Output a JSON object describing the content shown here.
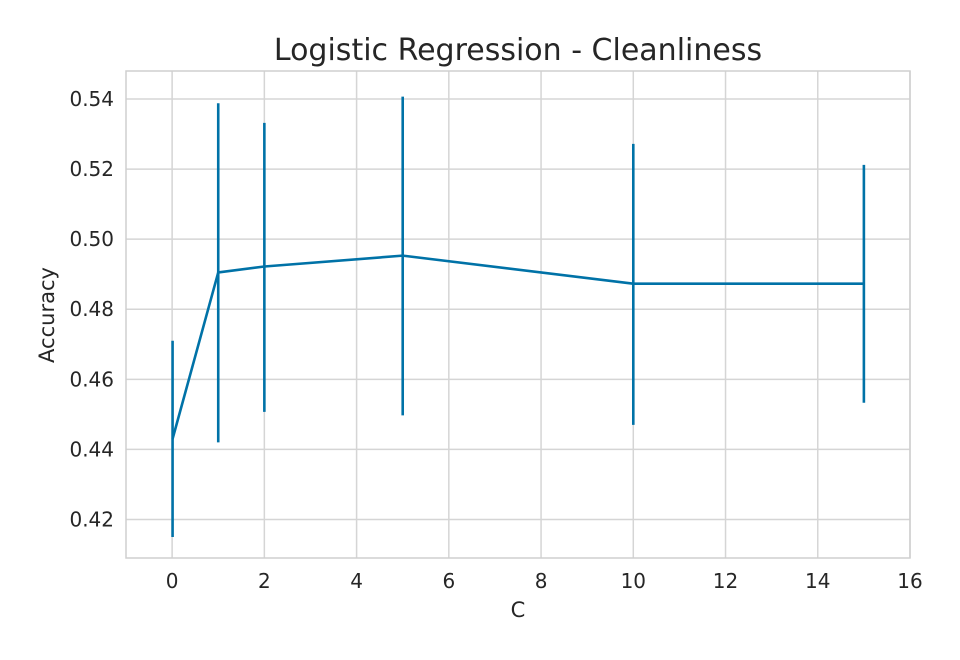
{
  "chart_data": {
    "type": "line",
    "title": "Logistic Regression - Cleanliness",
    "xlabel": "C",
    "ylabel": "Accuracy",
    "xlim": [
      -1,
      16
    ],
    "ylim": [
      0.409,
      0.548
    ],
    "grid": true,
    "x_ticks": [
      0,
      2,
      4,
      6,
      8,
      10,
      12,
      14,
      16
    ],
    "x_tick_labels": [
      "0",
      "2",
      "4",
      "6",
      "8",
      "10",
      "12",
      "14",
      "16"
    ],
    "y_ticks": [
      0.42,
      0.44,
      0.46,
      0.48,
      0.5,
      0.52,
      0.54
    ],
    "y_tick_labels": [
      "0.42",
      "0.44",
      "0.46",
      "0.48",
      "0.50",
      "0.52",
      "0.54"
    ],
    "series": [
      {
        "color": "#0072a7",
        "x": [
          0.01,
          1,
          2,
          5,
          10,
          15
        ],
        "y": [
          0.443,
          0.4905,
          0.4922,
          0.4953,
          0.4873,
          0.4873
        ],
        "err_low": [
          0.415,
          0.442,
          0.4507,
          0.4497,
          0.447,
          0.4533
        ],
        "err_high": [
          0.471,
          0.5388,
          0.5332,
          0.5407,
          0.5272,
          0.5212
        ]
      }
    ]
  }
}
